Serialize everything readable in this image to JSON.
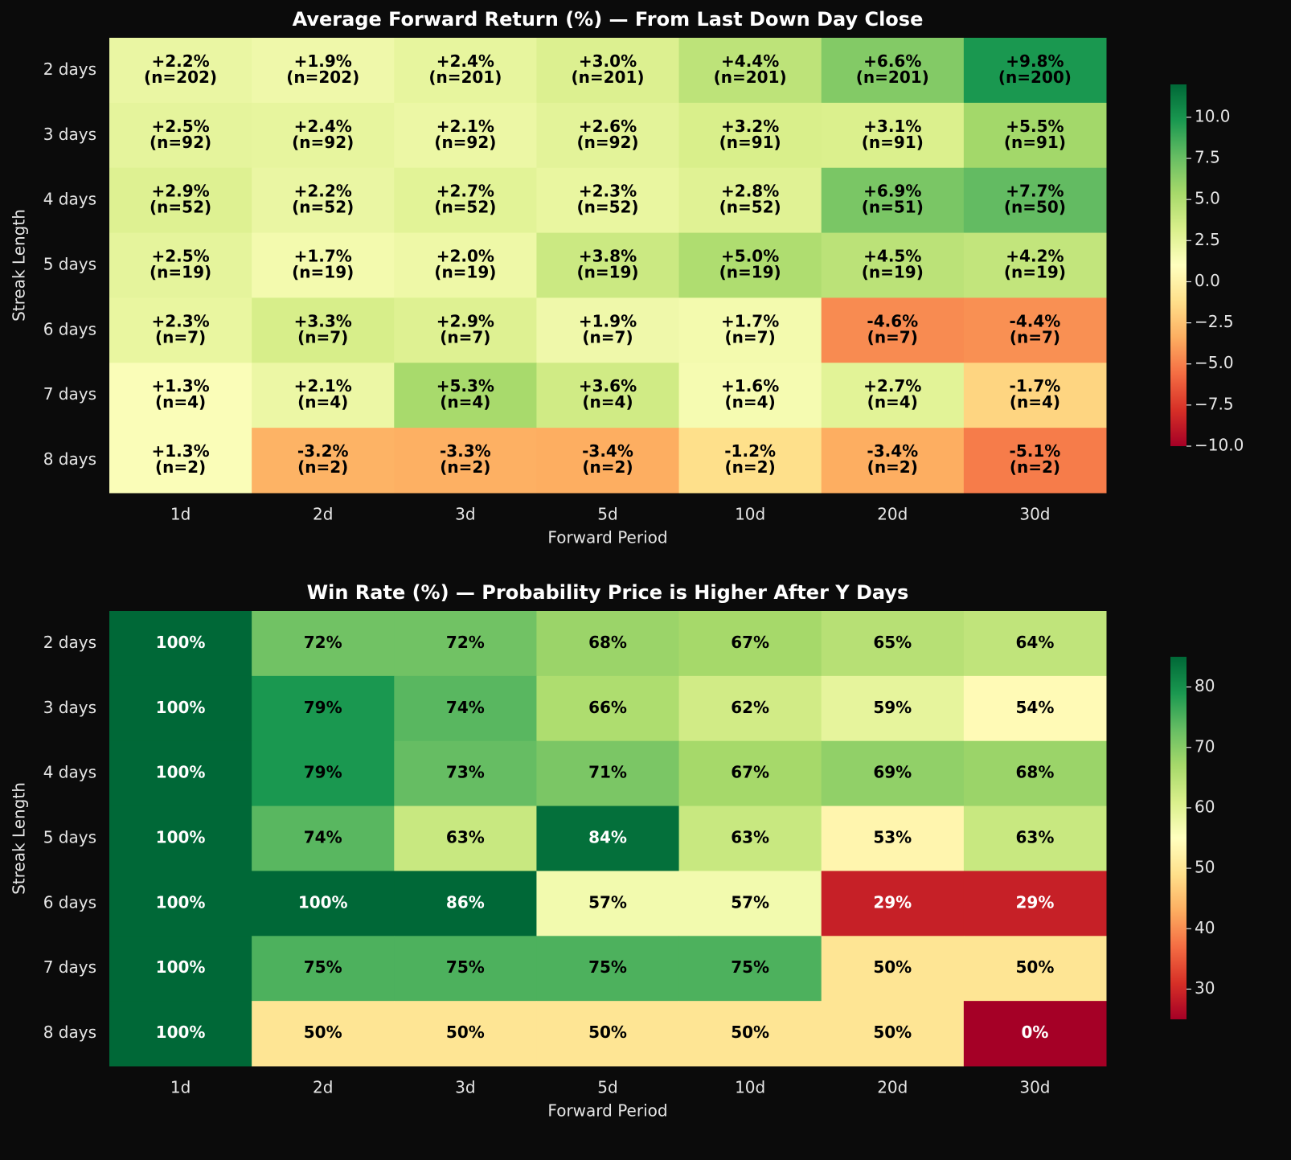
{
  "chart_data": [
    {
      "type": "heatmap",
      "title": "Average Forward Return (%) — From Last Down Day Close",
      "x_label": "Forward Period",
      "y_label": "Streak Length",
      "x_categories": [
        "1d",
        "2d",
        "3d",
        "5d",
        "10d",
        "20d",
        "30d"
      ],
      "y_categories": [
        "2 days",
        "3 days",
        "4 days",
        "5 days",
        "6 days",
        "7 days",
        "8 days"
      ],
      "values": [
        [
          2.2,
          1.9,
          2.4,
          3.0,
          4.4,
          6.6,
          9.8
        ],
        [
          2.5,
          2.4,
          2.1,
          2.6,
          3.2,
          3.1,
          5.5
        ],
        [
          2.9,
          2.2,
          2.7,
          2.3,
          2.8,
          6.9,
          7.7
        ],
        [
          2.5,
          1.7,
          2.0,
          3.8,
          5.0,
          4.5,
          4.2
        ],
        [
          2.3,
          3.3,
          2.9,
          1.9,
          1.7,
          -4.6,
          -4.4
        ],
        [
          1.3,
          2.1,
          5.3,
          3.6,
          1.6,
          2.7,
          -1.7
        ],
        [
          1.3,
          -3.2,
          -3.3,
          -3.4,
          -1.2,
          -3.4,
          -5.1
        ]
      ],
      "value_labels": [
        [
          "+2.2%",
          "+1.9%",
          "+2.4%",
          "+3.0%",
          "+4.4%",
          "+6.6%",
          "+9.8%"
        ],
        [
          "+2.5%",
          "+2.4%",
          "+2.1%",
          "+2.6%",
          "+3.2%",
          "+3.1%",
          "+5.5%"
        ],
        [
          "+2.9%",
          "+2.2%",
          "+2.7%",
          "+2.3%",
          "+2.8%",
          "+6.9%",
          "+7.7%"
        ],
        [
          "+2.5%",
          "+1.7%",
          "+2.0%",
          "+3.8%",
          "+5.0%",
          "+4.5%",
          "+4.2%"
        ],
        [
          "+2.3%",
          "+3.3%",
          "+2.9%",
          "+1.9%",
          "+1.7%",
          "-4.6%",
          "-4.4%"
        ],
        [
          "+1.3%",
          "+2.1%",
          "+5.3%",
          "+3.6%",
          "+1.6%",
          "+2.7%",
          "-1.7%"
        ],
        [
          "+1.3%",
          "-3.2%",
          "-3.3%",
          "-3.4%",
          "-1.2%",
          "-3.4%",
          "-5.1%"
        ]
      ],
      "counts": [
        [
          202,
          202,
          201,
          201,
          201,
          201,
          200
        ],
        [
          92,
          92,
          92,
          92,
          91,
          91,
          91
        ],
        [
          52,
          52,
          52,
          52,
          52,
          51,
          50
        ],
        [
          19,
          19,
          19,
          19,
          19,
          19,
          19
        ],
        [
          7,
          7,
          7,
          7,
          7,
          7,
          7
        ],
        [
          4,
          4,
          4,
          4,
          4,
          4,
          4
        ],
        [
          2,
          2,
          2,
          2,
          2,
          2,
          2
        ]
      ],
      "count_labels": [
        [
          "(n=202)",
          "(n=202)",
          "(n=201)",
          "(n=201)",
          "(n=201)",
          "(n=201)",
          "(n=200)"
        ],
        [
          "(n=92)",
          "(n=92)",
          "(n=92)",
          "(n=92)",
          "(n=91)",
          "(n=91)",
          "(n=91)"
        ],
        [
          "(n=52)",
          "(n=52)",
          "(n=52)",
          "(n=52)",
          "(n=52)",
          "(n=51)",
          "(n=50)"
        ],
        [
          "(n=19)",
          "(n=19)",
          "(n=19)",
          "(n=19)",
          "(n=19)",
          "(n=19)",
          "(n=19)"
        ],
        [
          "(n=7)",
          "(n=7)",
          "(n=7)",
          "(n=7)",
          "(n=7)",
          "(n=7)",
          "(n=7)"
        ],
        [
          "(n=4)",
          "(n=4)",
          "(n=4)",
          "(n=4)",
          "(n=4)",
          "(n=4)",
          "(n=4)"
        ],
        [
          "(n=2)",
          "(n=2)",
          "(n=2)",
          "(n=2)",
          "(n=2)",
          "(n=2)",
          "(n=2)"
        ]
      ],
      "zlim": [
        -10,
        12
      ],
      "zticks": [
        {
          "value": -10,
          "label": "−10.0"
        },
        7.5,
        {
          "value": -7.5,
          "label": "−7.5"
        },
        {
          "value": -5,
          "label": "−5.0"
        },
        {
          "value": -2.5,
          "label": "−2.5"
        },
        {
          "value": 0,
          "label": "0.0"
        },
        2.5,
        {
          "value": 5,
          "label": "5.0"
        },
        {
          "value": 10,
          "label": "10.0"
        }
      ],
      "colormap": [
        "#a50026",
        "#d73027",
        "#f46d43",
        "#fdae61",
        "#fee08b",
        "#ffffbf",
        "#d9ef8b",
        "#a6d96a",
        "#66bd63",
        "#1a9850",
        "#006837"
      ]
    },
    {
      "type": "heatmap",
      "title": "Win Rate (%) — Probability Price is Higher After Y Days",
      "x_label": "Forward Period",
      "y_label": "Streak Length",
      "x_categories": [
        "1d",
        "2d",
        "3d",
        "5d",
        "10d",
        "20d",
        "30d"
      ],
      "y_categories": [
        "2 days",
        "3 days",
        "4 days",
        "5 days",
        "6 days",
        "7 days",
        "8 days"
      ],
      "values": [
        [
          100,
          72,
          72,
          68,
          67,
          65,
          64
        ],
        [
          100,
          79,
          74,
          66,
          62,
          59,
          54
        ],
        [
          100,
          79,
          73,
          71,
          67,
          69,
          68
        ],
        [
          100,
          74,
          63,
          84,
          63,
          53,
          63
        ],
        [
          100,
          100,
          86,
          57,
          57,
          29,
          29
        ],
        [
          100,
          75,
          75,
          75,
          75,
          50,
          50
        ],
        [
          100,
          50,
          50,
          50,
          50,
          50,
          0
        ]
      ],
      "value_labels": [
        [
          "100%",
          "72%",
          "72%",
          "68%",
          "67%",
          "65%",
          "64%"
        ],
        [
          "100%",
          "79%",
          "74%",
          "66%",
          "62%",
          "59%",
          "54%"
        ],
        [
          "100%",
          "79%",
          "73%",
          "71%",
          "67%",
          "69%",
          "68%"
        ],
        [
          "100%",
          "74%",
          "63%",
          "84%",
          "63%",
          "53%",
          "63%"
        ],
        [
          "100%",
          "100%",
          "86%",
          "57%",
          "57%",
          "29%",
          "29%"
        ],
        [
          "100%",
          "75%",
          "75%",
          "75%",
          "75%",
          "50%",
          "50%"
        ],
        [
          "100%",
          "50%",
          "50%",
          "50%",
          "50%",
          "50%",
          "0%"
        ]
      ],
      "zlim": [
        25,
        85
      ],
      "zticks": [
        30,
        40,
        50,
        60,
        70,
        80
      ],
      "colormap": [
        "#a50026",
        "#d73027",
        "#f46d43",
        "#fdae61",
        "#fee08b",
        "#ffffbf",
        "#d9ef8b",
        "#a6d96a",
        "#66bd63",
        "#1a9850",
        "#006837"
      ]
    }
  ]
}
